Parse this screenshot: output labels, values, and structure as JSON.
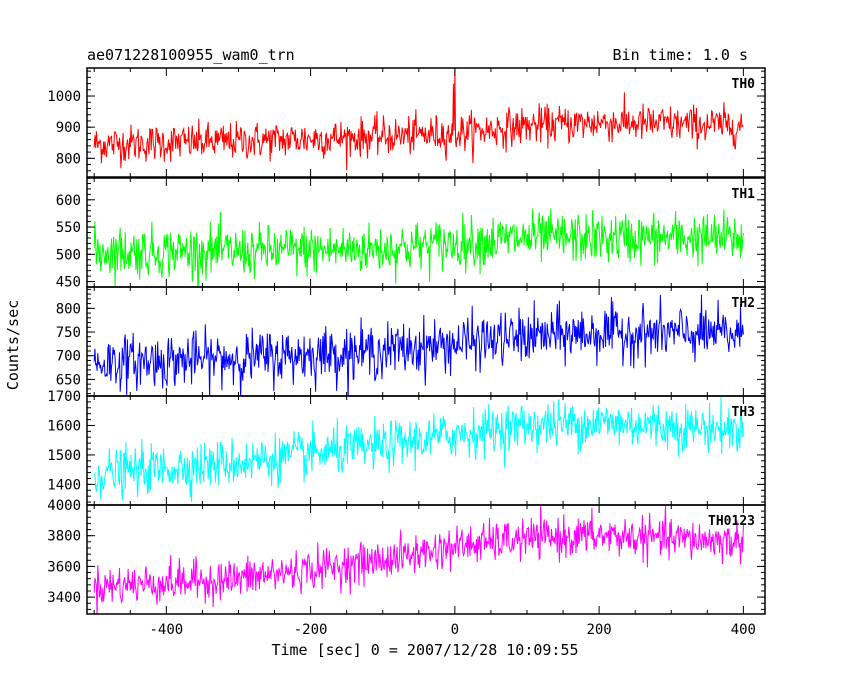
{
  "chart_data": {
    "type": "line",
    "title_left": "ae071228100955_wam0_trn",
    "title_right": "Bin time: 1.0 s",
    "xlabel": "Time [sec] 0 = 2007/12/28 10:09:55",
    "ylabel": "Counts/sec",
    "xlim": [
      -510,
      430
    ],
    "xticks": [
      -400,
      -200,
      0,
      200,
      400
    ],
    "x_range": [
      -500,
      400
    ],
    "bin_time": 1.0,
    "panels": [
      {
        "name": "TH0",
        "color": "#ff0000",
        "ylim": [
          740,
          1090
        ],
        "yticks": [
          800,
          900,
          1000
        ],
        "trend": [
          [
            -500,
            845
          ],
          [
            -300,
            855
          ],
          [
            -100,
            870
          ],
          [
            0,
            880
          ],
          [
            100,
            905
          ],
          [
            200,
            915
          ],
          [
            400,
            905
          ]
        ],
        "noise_std": 30,
        "spikes": [
          [
            0,
            1090
          ],
          [
            -2,
            1040
          ]
        ]
      },
      {
        "name": "TH1",
        "color": "#00ff00",
        "ylim": [
          440,
          640
        ],
        "yticks": [
          450,
          500,
          550,
          600
        ],
        "trend": [
          [
            -500,
            505
          ],
          [
            -300,
            505
          ],
          [
            -100,
            510
          ],
          [
            0,
            520
          ],
          [
            100,
            530
          ],
          [
            200,
            530
          ],
          [
            400,
            530
          ]
        ],
        "noise_std": 23,
        "spikes": []
      },
      {
        "name": "TH2",
        "color": "#0000ff",
        "ylim": [
          615,
          845
        ],
        "yticks": [
          650,
          700,
          750,
          800
        ],
        "trend": [
          [
            -500,
            685
          ],
          [
            -300,
            695
          ],
          [
            -100,
            710
          ],
          [
            0,
            725
          ],
          [
            100,
            740
          ],
          [
            200,
            748
          ],
          [
            400,
            745
          ]
        ],
        "noise_std": 28,
        "spikes": []
      },
      {
        "name": "TH3",
        "color": "#00ffff",
        "ylim": [
          1330,
          1700
        ],
        "yticks": [
          1400,
          1500,
          1600,
          1700
        ],
        "trend": [
          [
            -500,
            1435
          ],
          [
            -300,
            1475
          ],
          [
            -100,
            1530
          ],
          [
            0,
            1570
          ],
          [
            100,
            1600
          ],
          [
            200,
            1610
          ],
          [
            400,
            1585
          ]
        ],
        "noise_std": 40,
        "spikes": []
      },
      {
        "name": "TH0123",
        "color": "#ff00ff",
        "ylim": [
          3290,
          4000
        ],
        "yticks": [
          3400,
          3600,
          3800,
          4000
        ],
        "trend": [
          [
            -500,
            3470
          ],
          [
            -300,
            3520
          ],
          [
            -100,
            3640
          ],
          [
            0,
            3730
          ],
          [
            100,
            3780
          ],
          [
            200,
            3800
          ],
          [
            400,
            3760
          ]
        ],
        "noise_std": 65,
        "spikes": []
      }
    ]
  }
}
